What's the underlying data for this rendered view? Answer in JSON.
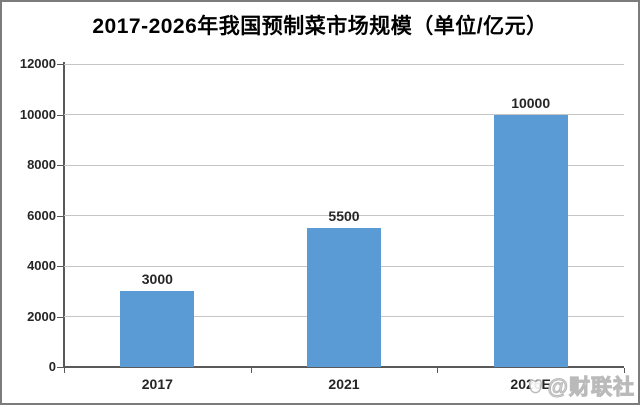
{
  "page": {
    "kind": "chart-image",
    "background": "#ffffff",
    "border_color": "#7c7c7c"
  },
  "chart_data": {
    "type": "bar",
    "title": "2017-2026年我国预制菜市场规模（单位/亿元）",
    "categories": [
      "2017",
      "2021",
      "2026E"
    ],
    "values": [
      3000,
      5500,
      10000
    ],
    "data_labels": [
      "3000",
      "5500",
      "10000"
    ],
    "xlabel": "",
    "ylabel": "",
    "ylim": [
      0,
      12000
    ],
    "yticks": [
      0,
      2000,
      4000,
      6000,
      8000,
      10000,
      12000
    ],
    "grid": true,
    "legend": false,
    "bar_color": "#5B9BD5",
    "axis_color": "#595959",
    "gridline_color": "#C6C6C6",
    "label_color": "#262626",
    "title_color": "#000000"
  },
  "watermark": {
    "text": "@财联社",
    "icon": "cailian-press-logo-icon"
  }
}
